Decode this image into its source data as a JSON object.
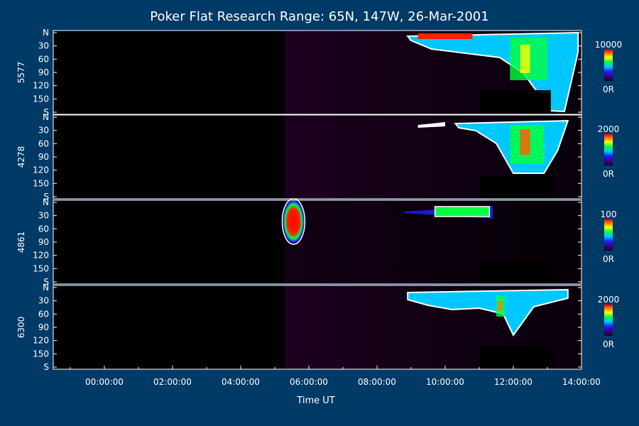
{
  "chart_data": {
    "type": "heatmap",
    "title": "Poker Flat Research Range: 65N, 147W, 26-Mar-2001",
    "xlabel": "Time UT",
    "x_ticks": [
      "00:00:00",
      "02:00:00",
      "04:00:00",
      "06:00:00",
      "08:00:00",
      "10:00:00",
      "12:00:00",
      "14:00:00"
    ],
    "x_range_hours": [
      -1.5,
      14.0
    ],
    "y_ticks": [
      "N",
      "30",
      "60",
      "90",
      "120",
      "150",
      "S"
    ],
    "y_range": [
      0,
      180
    ],
    "panels": [
      {
        "wavelength": "5577",
        "colorbar_max": "10000",
        "colorbar_min": "0R"
      },
      {
        "wavelength": "4278",
        "colorbar_max": "2000",
        "colorbar_min": "0R"
      },
      {
        "wavelength": "4861",
        "colorbar_max": "100",
        "colorbar_min": "0R"
      },
      {
        "wavelength": "6300",
        "colorbar_max": "2000",
        "colorbar_min": "0R"
      }
    ],
    "colorscale": [
      "#1a0033",
      "#3a0080",
      "#2020ff",
      "#00c8ff",
      "#00ff40",
      "#ffff00",
      "#ff8000",
      "#ff0000"
    ],
    "background_color": "#003a66"
  }
}
